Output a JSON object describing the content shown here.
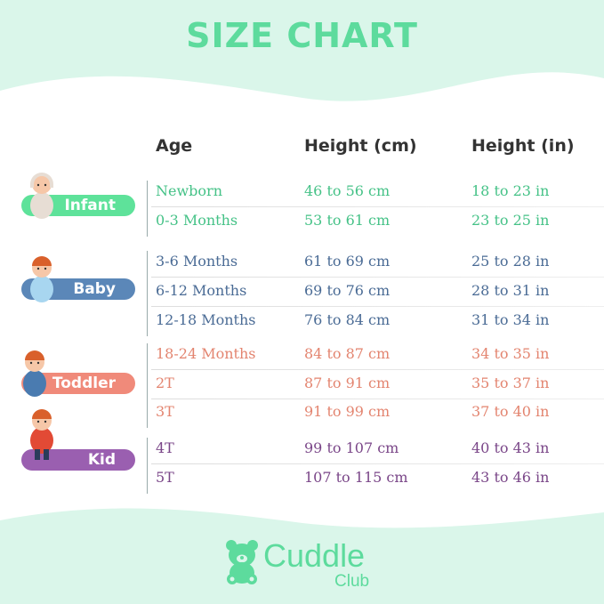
{
  "title": "SIZE CHART",
  "colors": {
    "mint_bg": "#daf6ea",
    "title": "#5ddb9d",
    "infant": "#45c287",
    "baby": "#4a6b95",
    "toddler": "#e3846f",
    "kid": "#7a4688"
  },
  "headers": {
    "age": "Age",
    "cm": "Height (cm)",
    "in": "Height (in)"
  },
  "groups": [
    {
      "label": "Infant",
      "badge_color": "#5ee29a",
      "rows": [
        {
          "age": "Newborn",
          "cm": "46 to 56 cm",
          "in": "18 to 23 in"
        },
        {
          "age": "0-3 Months",
          "cm": "53 to 61 cm",
          "in": "23 to 25 in"
        }
      ]
    },
    {
      "label": "Baby",
      "badge_color": "#5b87b8",
      "rows": [
        {
          "age": "3-6 Months",
          "cm": "61 to 69 cm",
          "in": "25 to 28 in"
        },
        {
          "age": "6-12 Months",
          "cm": "69 to 76 cm",
          "in": "28 to 31 in"
        },
        {
          "age": "12-18 Months",
          "cm": "76 to 84 cm",
          "in": "31 to 34 in"
        }
      ]
    },
    {
      "label": "Toddler",
      "badge_color": "#f08a7a",
      "rows": [
        {
          "age": "18-24 Months",
          "cm": "84 to 87 cm",
          "in": "34 to 35 in"
        },
        {
          "age": "2T",
          "cm": "87 to 91 cm",
          "in": "35 to 37 in"
        },
        {
          "age": "3T",
          "cm": "91 to 99 cm",
          "in": "37 to 40 in"
        }
      ]
    },
    {
      "label": "Kid",
      "badge_color": "#9a5fb0",
      "rows": [
        {
          "age": "4T",
          "cm": "99 to 107 cm",
          "in": "40 to 43 in"
        },
        {
          "age": "5T",
          "cm": "107 to 115 cm",
          "in": "43 to 46 in"
        }
      ]
    }
  ],
  "brand": {
    "line1": "Cuddle",
    "line2": "Club",
    "icon": "teddy-bear-icon"
  }
}
